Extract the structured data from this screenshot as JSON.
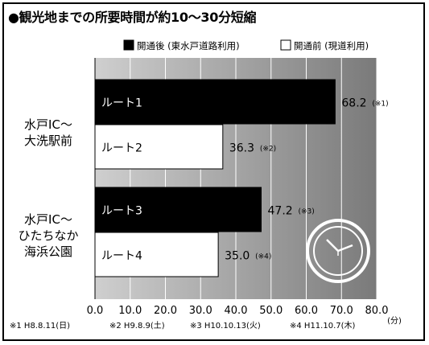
{
  "title": "●観光地までの所要時間が約10〜30分短縮",
  "chart_data": {
    "type": "bar",
    "orientation": "horizontal",
    "title": "●観光地までの所要時間が約10〜30分短縮",
    "xlabel": "(分)",
    "xlim": [
      0,
      80
    ],
    "xticks": [
      "0.0",
      "10.0",
      "20.0",
      "30.0",
      "40.0",
      "50.0",
      "60.0",
      "70.0",
      "80.0"
    ],
    "grid": true,
    "legend_position": "top-right",
    "legend": [
      {
        "label": "開通後 (東水戸道路利用)",
        "color": "#000000"
      },
      {
        "label": "開通前 (現道利用)",
        "color": "#ffffff"
      }
    ],
    "groups": [
      {
        "label_lines": [
          "水戸IC〜",
          "大洗駅前"
        ]
      },
      {
        "label_lines": [
          "水戸IC〜",
          "ひたちなか",
          "海浜公園"
        ]
      }
    ],
    "bars": [
      {
        "route": "ルート1",
        "value": 68.2,
        "value_label": "68.2",
        "note": "(※1)",
        "fill": "#000000",
        "group": 0
      },
      {
        "route": "ルート2",
        "value": 36.3,
        "value_label": "36.3",
        "note": "(※2)",
        "fill": "#ffffff",
        "group": 0
      },
      {
        "route": "ルート3",
        "value": 47.2,
        "value_label": "47.2",
        "note": "(※3)",
        "fill": "#000000",
        "group": 1
      },
      {
        "route": "ルート4",
        "value": 35.0,
        "value_label": "35.0",
        "note": "(※4)",
        "fill": "#ffffff",
        "group": 1
      }
    ],
    "footnotes": [
      "※1 H8.8.11(日)",
      "※2 H9.8.9(土)",
      "※3 H10.10.13(火)",
      "※4 H11.10.7(木)"
    ]
  }
}
